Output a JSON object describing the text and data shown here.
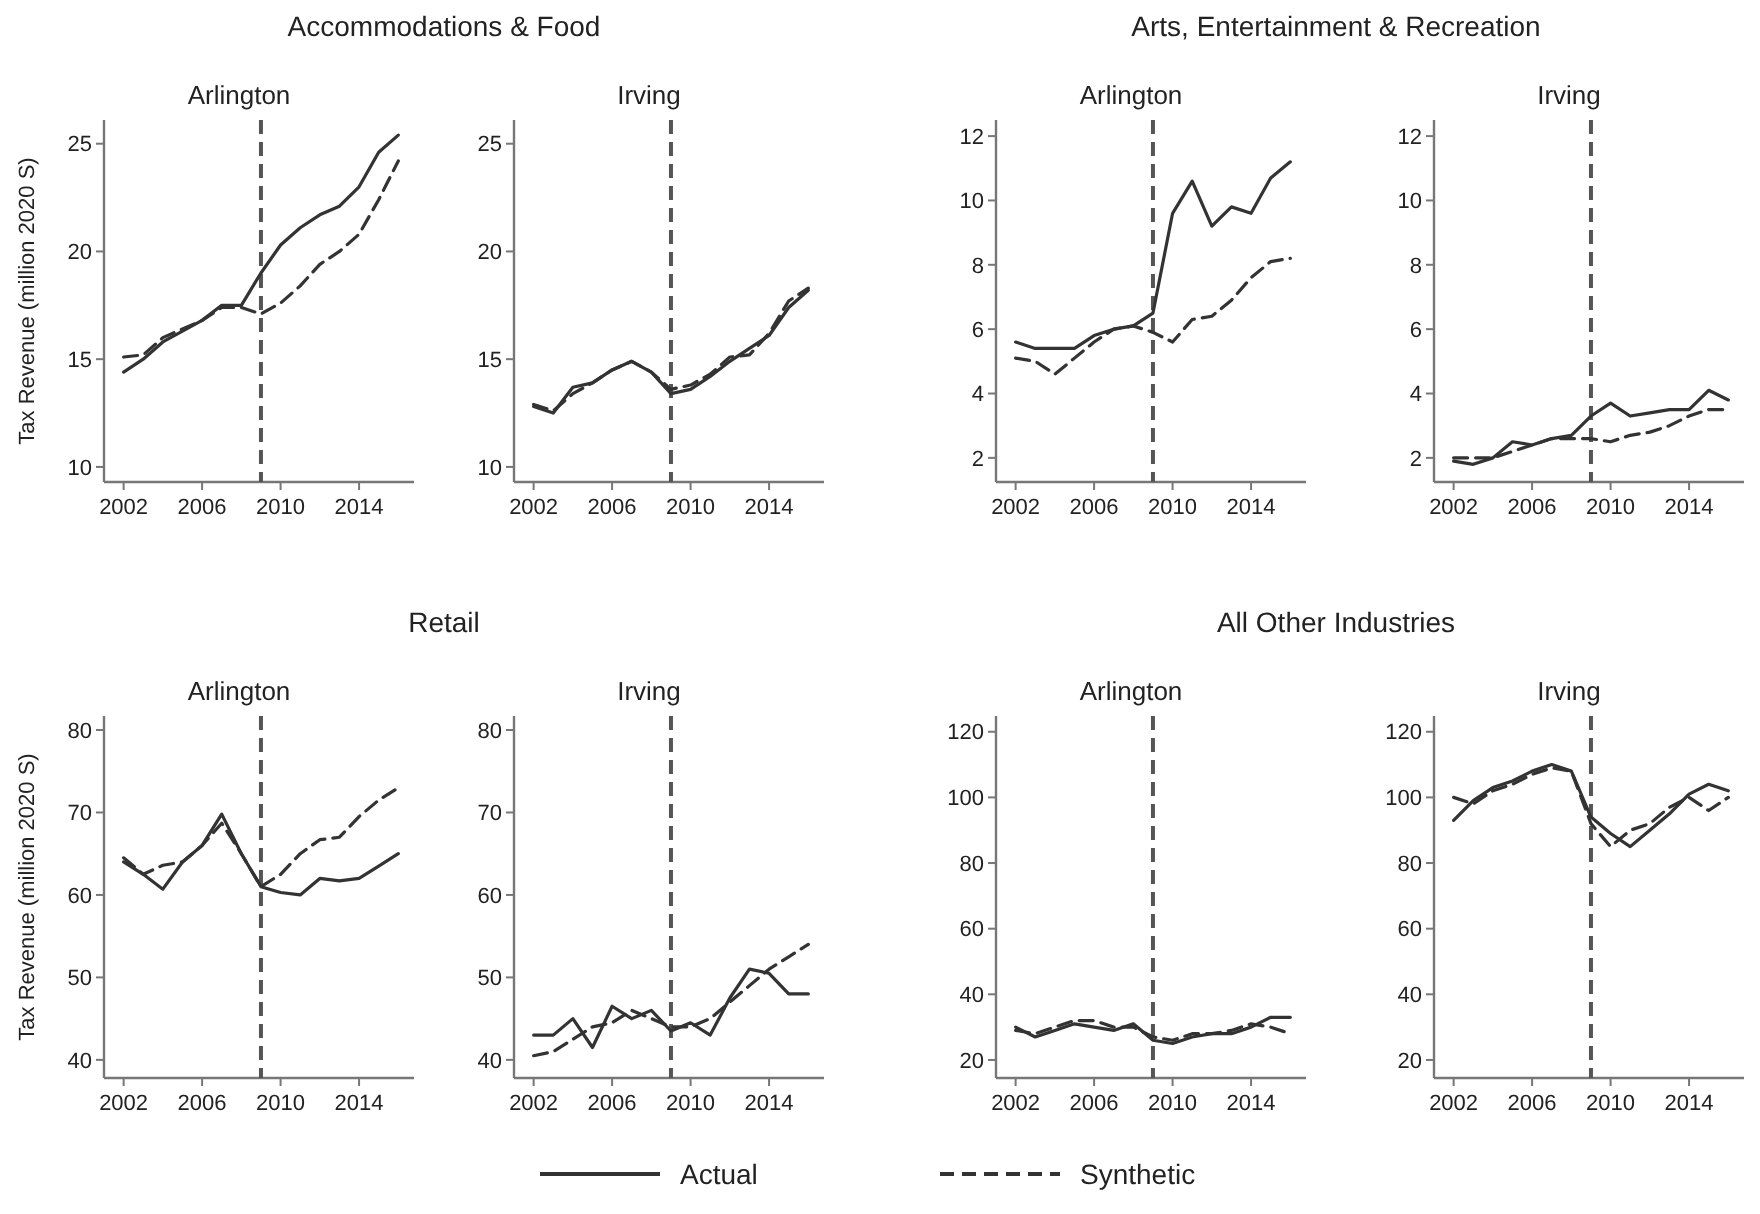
{
  "chart_data": [
    {
      "type": "line",
      "title": "Accommodations & Food",
      "subtitle": "Arlington",
      "ylabel": "Tax Revenue (million 2020 S)",
      "legend": "bottom",
      "x": [
        2002,
        2003,
        2004,
        2005,
        2006,
        2007,
        2008,
        2009,
        2010,
        2011,
        2012,
        2013,
        2014,
        2015,
        2016
      ],
      "xlim": [
        2001,
        2016.8
      ],
      "xticks": [
        2002,
        2006,
        2010,
        2014
      ],
      "ylim": [
        9.3,
        26.1
      ],
      "yticks": [
        10,
        15,
        20,
        25
      ],
      "ref_lines": [
        {
          "axis": "x",
          "value": 2009,
          "line_style": "dashed",
          "color": "#555555"
        }
      ],
      "series": [
        {
          "name": "Actual",
          "color": "#333333",
          "line_style": "solid",
          "values": [
            14.4,
            15.0,
            15.8,
            16.3,
            16.8,
            17.5,
            17.5,
            19.0,
            20.3,
            21.1,
            21.7,
            22.1,
            23.0,
            24.6,
            25.4
          ]
        },
        {
          "name": "Synthetic",
          "color": "#333333",
          "line_style": "dashed",
          "values": [
            15.1,
            15.2,
            16.0,
            16.4,
            16.8,
            17.4,
            17.4,
            17.1,
            17.6,
            18.4,
            19.4,
            20.0,
            20.8,
            22.4,
            24.2
          ]
        }
      ]
    },
    {
      "type": "line",
      "subtitle": "Irving",
      "x": [
        2002,
        2003,
        2004,
        2005,
        2006,
        2007,
        2008,
        2009,
        2010,
        2011,
        2012,
        2013,
        2014,
        2015,
        2016
      ],
      "xlim": [
        2001,
        2016.8
      ],
      "xticks": [
        2002,
        2006,
        2010,
        2014
      ],
      "ylim": [
        9.3,
        26.1
      ],
      "yticks": [
        10,
        15,
        20,
        25
      ],
      "ref_lines": [
        {
          "axis": "x",
          "value": 2009,
          "line_style": "dashed",
          "color": "#555555"
        }
      ],
      "series": [
        {
          "color": "#333333",
          "line_style": "solid",
          "values": [
            12.8,
            12.5,
            13.7,
            13.9,
            14.5,
            14.9,
            14.4,
            13.4,
            13.6,
            14.2,
            14.9,
            15.5,
            16.1,
            17.4,
            18.2
          ]
        },
        {
          "color": "#333333",
          "line_style": "dashed",
          "values": [
            12.9,
            12.6,
            13.4,
            13.9,
            14.5,
            14.9,
            14.4,
            13.6,
            13.8,
            14.3,
            15.1,
            15.2,
            16.2,
            17.7,
            18.3
          ]
        }
      ]
    },
    {
      "type": "line",
      "title": "Arts, Entertainment & Recreation",
      "subtitle": "Arlington",
      "x": [
        2002,
        2003,
        2004,
        2005,
        2006,
        2007,
        2008,
        2009,
        2010,
        2011,
        2012,
        2013,
        2014,
        2015,
        2016
      ],
      "xlim": [
        2001,
        2016.8
      ],
      "xticks": [
        2002,
        2006,
        2010,
        2014
      ],
      "ylim": [
        1.25,
        12.5
      ],
      "yticks": [
        2,
        4,
        6,
        8,
        10,
        12
      ],
      "ref_lines": [
        {
          "axis": "x",
          "value": 2009,
          "line_style": "dashed",
          "color": "#555555"
        }
      ],
      "series": [
        {
          "color": "#333333",
          "line_style": "solid",
          "values": [
            5.6,
            5.4,
            5.4,
            5.4,
            5.8,
            6.0,
            6.1,
            6.5,
            9.6,
            10.6,
            9.2,
            9.8,
            9.6,
            10.7,
            11.2
          ]
        },
        {
          "color": "#333333",
          "line_style": "dashed",
          "values": [
            5.1,
            5.0,
            4.6,
            5.1,
            5.6,
            6.0,
            6.1,
            5.9,
            5.6,
            6.3,
            6.4,
            6.9,
            7.6,
            8.1,
            8.2
          ]
        }
      ]
    },
    {
      "type": "line",
      "subtitle": "Irving",
      "x": [
        2002,
        2003,
        2004,
        2005,
        2006,
        2007,
        2008,
        2009,
        2010,
        2011,
        2012,
        2013,
        2014,
        2015,
        2016
      ],
      "xlim": [
        2001,
        2016.8
      ],
      "xticks": [
        2002,
        2006,
        2010,
        2014
      ],
      "ylim": [
        1.25,
        12.5
      ],
      "yticks": [
        2,
        4,
        6,
        8,
        10,
        12
      ],
      "ref_lines": [
        {
          "axis": "x",
          "value": 2009,
          "line_style": "dashed",
          "color": "#555555"
        }
      ],
      "series": [
        {
          "color": "#333333",
          "line_style": "solid",
          "values": [
            1.9,
            1.8,
            2.0,
            2.5,
            2.4,
            2.6,
            2.7,
            3.3,
            3.7,
            3.3,
            3.4,
            3.5,
            3.5,
            4.1,
            3.8
          ]
        },
        {
          "color": "#333333",
          "line_style": "dashed",
          "values": [
            2.0,
            2.0,
            2.0,
            2.2,
            2.4,
            2.6,
            2.6,
            2.6,
            2.5,
            2.7,
            2.8,
            3.0,
            3.3,
            3.5,
            3.5
          ]
        }
      ]
    },
    {
      "type": "line",
      "title": "Retail",
      "subtitle": "Arlington",
      "ylabel": "Tax Revenue (million 2020 S)",
      "x": [
        2002,
        2003,
        2004,
        2005,
        2006,
        2007,
        2008,
        2009,
        2010,
        2011,
        2012,
        2013,
        2014,
        2015,
        2016
      ],
      "xlim": [
        2001,
        2016.8
      ],
      "xticks": [
        2002,
        2006,
        2010,
        2014
      ],
      "ylim": [
        37.8,
        81.7
      ],
      "yticks": [
        40,
        50,
        60,
        70,
        80
      ],
      "ref_lines": [
        {
          "axis": "x",
          "value": 2009,
          "line_style": "dashed",
          "color": "#555555"
        }
      ],
      "series": [
        {
          "color": "#333333",
          "line_style": "solid",
          "values": [
            64,
            62.5,
            60.7,
            64,
            66,
            69.8,
            65,
            61,
            60.3,
            60,
            62,
            61.7,
            62,
            63.5,
            65
          ]
        },
        {
          "color": "#333333",
          "line_style": "dashed",
          "values": [
            64.5,
            62.5,
            63.6,
            64,
            66,
            68.7,
            65,
            61,
            62.5,
            65,
            66.7,
            67,
            69.5,
            71.5,
            73
          ]
        }
      ]
    },
    {
      "type": "line",
      "subtitle": "Irving",
      "x": [
        2002,
        2003,
        2004,
        2005,
        2006,
        2007,
        2008,
        2009,
        2010,
        2011,
        2012,
        2013,
        2014,
        2015,
        2016
      ],
      "xlim": [
        2001,
        2016.8
      ],
      "xticks": [
        2002,
        2006,
        2010,
        2014
      ],
      "ylim": [
        37.8,
        81.7
      ],
      "yticks": [
        40,
        50,
        60,
        70,
        80
      ],
      "ref_lines": [
        {
          "axis": "x",
          "value": 2009,
          "line_style": "dashed",
          "color": "#555555"
        }
      ],
      "series": [
        {
          "color": "#333333",
          "line_style": "solid",
          "values": [
            43,
            43,
            45,
            41.5,
            46.5,
            45,
            46,
            43.5,
            44.5,
            43,
            47.5,
            51,
            50.5,
            48,
            48
          ]
        },
        {
          "color": "#333333",
          "line_style": "dashed",
          "values": [
            40.5,
            41,
            42.5,
            44,
            44.5,
            46,
            45,
            44,
            44,
            45,
            47,
            49,
            51,
            52.5,
            54
          ]
        }
      ]
    },
    {
      "type": "line",
      "title": "All Other Industries",
      "subtitle": "Arlington",
      "x": [
        2002,
        2003,
        2004,
        2005,
        2006,
        2007,
        2008,
        2009,
        2010,
        2011,
        2012,
        2013,
        2014,
        2015,
        2016
      ],
      "xlim": [
        2001,
        2016.8
      ],
      "xticks": [
        2002,
        2006,
        2010,
        2014
      ],
      "ylim": [
        14.5,
        124.8
      ],
      "yticks": [
        20,
        40,
        60,
        80,
        100,
        120
      ],
      "ref_lines": [
        {
          "axis": "x",
          "value": 2009,
          "line_style": "dashed",
          "color": "#555555"
        }
      ],
      "series": [
        {
          "color": "#333333",
          "line_style": "solid",
          "values": [
            30,
            27,
            29,
            31,
            30,
            29,
            31,
            26,
            25,
            27,
            28,
            28,
            30,
            33,
            33
          ]
        },
        {
          "color": "#333333",
          "line_style": "dashed",
          "values": [
            29,
            28,
            30,
            32,
            32,
            30,
            30,
            27,
            26,
            28,
            28,
            29,
            31,
            30,
            28
          ]
        }
      ]
    },
    {
      "type": "line",
      "subtitle": "Irving",
      "x": [
        2002,
        2003,
        2004,
        2005,
        2006,
        2007,
        2008,
        2009,
        2010,
        2011,
        2012,
        2013,
        2014,
        2015,
        2016
      ],
      "xlim": [
        2001,
        2016.8
      ],
      "xticks": [
        2002,
        2006,
        2010,
        2014
      ],
      "ylim": [
        14.5,
        124.8
      ],
      "yticks": [
        20,
        40,
        60,
        80,
        100,
        120
      ],
      "ref_lines": [
        {
          "axis": "x",
          "value": 2009,
          "line_style": "dashed",
          "color": "#555555"
        }
      ],
      "series": [
        {
          "color": "#333333",
          "line_style": "solid",
          "values": [
            93,
            99,
            103,
            105,
            108,
            110,
            108,
            94,
            89,
            85,
            90,
            95,
            101,
            104,
            102
          ]
        },
        {
          "color": "#333333",
          "line_style": "dashed",
          "values": [
            100,
            98,
            102,
            104,
            107,
            109,
            108,
            92,
            85,
            90,
            92,
            97,
            100,
            96,
            100
          ]
        }
      ]
    }
  ]
}
